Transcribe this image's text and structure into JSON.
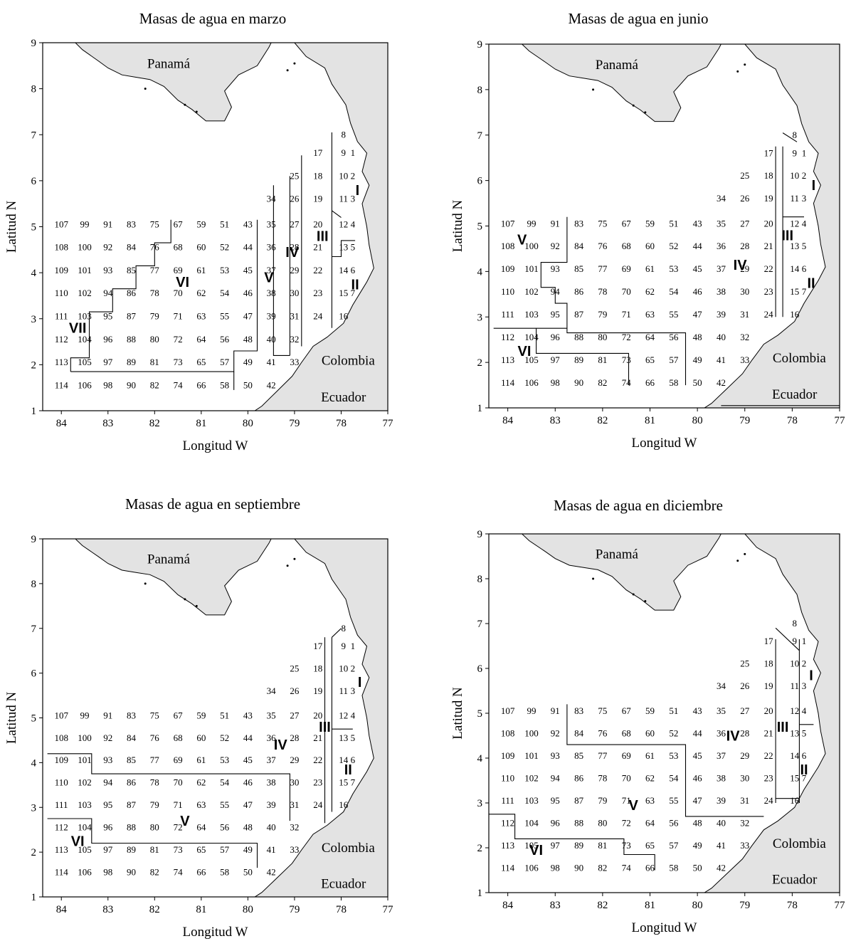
{
  "panels": [
    {
      "title": "Masas de agua en marzo",
      "id": "marzo",
      "labels": [
        [
          "VII",
          83.65,
          2.8
        ],
        [
          "VI",
          81.4,
          3.8
        ],
        [
          "V",
          79.55,
          3.9
        ],
        [
          "IV",
          79.05,
          4.45
        ],
        [
          "III",
          78.4,
          4.8
        ],
        [
          "II",
          77.7,
          3.75
        ],
        [
          "I",
          77.65,
          5.8
        ]
      ],
      "lines": [
        [
          [
            83.8,
            1.85
          ],
          [
            83.8,
            2.15
          ],
          [
            83.4,
            2.15
          ],
          [
            83.4,
            3.15
          ],
          [
            82.9,
            3.15
          ],
          [
            82.9,
            3.65
          ],
          [
            82.4,
            3.65
          ],
          [
            82.4,
            4.15
          ],
          [
            82.0,
            4.15
          ],
          [
            82.0,
            4.65
          ],
          [
            81.65,
            4.65
          ],
          [
            81.65,
            5.15
          ]
        ],
        [
          [
            83.8,
            1.85
          ],
          [
            80.3,
            1.85
          ],
          [
            80.3,
            2.3
          ],
          [
            79.8,
            2.3
          ],
          [
            79.8,
            5.15
          ]
        ],
        [
          [
            80.3,
            1.85
          ],
          [
            80.3,
            1.45
          ]
        ],
        [
          [
            79.45,
            5.9
          ],
          [
            79.45,
            2.2
          ],
          [
            79.1,
            2.2
          ]
        ],
        [
          [
            79.1,
            2.2
          ],
          [
            79.1,
            6.1
          ]
        ],
        [
          [
            78.85,
            2.4
          ],
          [
            78.85,
            6.55
          ]
        ],
        [
          [
            78.2,
            2.8
          ],
          [
            78.2,
            7.05
          ]
        ],
        [
          [
            78.2,
            4.35
          ],
          [
            78.0,
            4.35
          ],
          [
            78.0,
            4.7
          ],
          [
            77.7,
            4.7
          ]
        ],
        [
          [
            78.2,
            5.35
          ],
          [
            78.0,
            5.2
          ]
        ]
      ]
    },
    {
      "title": "Masas de agua en junio",
      "id": "junio",
      "labels": [
        [
          "V",
          83.7,
          4.7
        ],
        [
          "VI",
          83.65,
          2.25
        ],
        [
          "IV",
          79.1,
          4.15
        ],
        [
          "III",
          78.1,
          4.8
        ],
        [
          "II",
          77.6,
          3.75
        ],
        [
          "I",
          77.55,
          5.9
        ]
      ],
      "lines": [
        [
          [
            84.3,
            2.75
          ],
          [
            83.4,
            2.75
          ],
          [
            83.4,
            2.2
          ],
          [
            81.45,
            2.2
          ],
          [
            81.45,
            1.5
          ]
        ],
        [
          [
            83.4,
            2.75
          ],
          [
            82.75,
            2.75
          ],
          [
            82.75,
            3.3
          ],
          [
            83.0,
            3.3
          ],
          [
            83.0,
            3.65
          ],
          [
            83.3,
            3.65
          ],
          [
            83.3,
            4.2
          ],
          [
            82.75,
            4.2
          ],
          [
            82.75,
            5.2
          ]
        ],
        [
          [
            82.75,
            2.75
          ],
          [
            82.75,
            2.65
          ],
          [
            80.25,
            2.65
          ],
          [
            80.25,
            1.5
          ]
        ],
        [
          [
            78.35,
            3.0
          ],
          [
            78.35,
            6.75
          ]
        ],
        [
          [
            78.2,
            3.0
          ],
          [
            78.2,
            6.75
          ]
        ],
        [
          [
            78.2,
            5.2
          ],
          [
            77.75,
            5.2
          ]
        ],
        [
          [
            78.2,
            7.05
          ],
          [
            77.9,
            6.85
          ]
        ],
        [
          [
            79.5,
            1.05
          ],
          [
            77.0,
            1.05
          ]
        ]
      ]
    },
    {
      "title": "Masas de agua en septiembre",
      "id": "septiembre",
      "labels": [
        [
          "VI",
          83.65,
          2.25
        ],
        [
          "V",
          81.35,
          2.7
        ],
        [
          "IV",
          79.3,
          4.4
        ],
        [
          "III",
          78.35,
          4.8
        ],
        [
          "II",
          77.85,
          3.85
        ],
        [
          "I",
          77.6,
          5.8
        ]
      ],
      "lines": [
        [
          [
            84.3,
            4.2
          ],
          [
            83.35,
            4.2
          ],
          [
            83.35,
            3.75
          ],
          [
            79.1,
            3.75
          ],
          [
            79.1,
            2.7
          ]
        ],
        [
          [
            84.3,
            2.75
          ],
          [
            83.35,
            2.75
          ],
          [
            83.35,
            2.2
          ],
          [
            79.8,
            2.2
          ],
          [
            79.8,
            1.65
          ]
        ],
        [
          [
            78.35,
            2.65
          ],
          [
            78.35,
            6.8
          ]
        ],
        [
          [
            78.2,
            2.9
          ],
          [
            78.2,
            6.8
          ]
        ],
        [
          [
            78.2,
            4.75
          ],
          [
            77.75,
            4.75
          ]
        ],
        [
          [
            78.2,
            6.8
          ],
          [
            78.0,
            7.0
          ]
        ]
      ]
    },
    {
      "title": "Masas de agua en diciembre",
      "id": "diciembre",
      "labels": [
        [
          "VI",
          83.4,
          1.95
        ],
        [
          "V",
          81.35,
          2.95
        ],
        [
          "IV",
          79.25,
          4.5
        ],
        [
          "III",
          78.2,
          4.7
        ],
        [
          "II",
          77.75,
          3.75
        ],
        [
          "I",
          77.6,
          5.85
        ]
      ],
      "lines": [
        [
          [
            84.4,
            2.75
          ],
          [
            83.85,
            2.75
          ],
          [
            83.85,
            2.2
          ],
          [
            81.55,
            2.2
          ],
          [
            81.55,
            1.85
          ],
          [
            80.9,
            1.85
          ],
          [
            80.9,
            1.5
          ]
        ],
        [
          [
            82.75,
            5.2
          ],
          [
            82.75,
            4.3
          ],
          [
            80.25,
            4.3
          ],
          [
            80.25,
            2.7
          ],
          [
            78.6,
            2.7
          ]
        ],
        [
          [
            78.35,
            3.0
          ],
          [
            78.35,
            6.65
          ]
        ],
        [
          [
            78.35,
            3.1
          ],
          [
            77.85,
            3.1
          ]
        ],
        [
          [
            77.85,
            3.0
          ],
          [
            77.85,
            6.65
          ]
        ],
        [
          [
            77.85,
            4.75
          ],
          [
            77.55,
            4.75
          ]
        ],
        [
          [
            78.35,
            6.9
          ],
          [
            77.85,
            6.4
          ]
        ]
      ]
    }
  ],
  "axes": {
    "xlabel": "Longitud W",
    "ylabel": "Latitud N",
    "xticks": [
      84,
      83,
      82,
      81,
      80,
      79,
      78,
      77
    ],
    "yticks": [
      1,
      2,
      3,
      4,
      5,
      6,
      7,
      8,
      9
    ]
  },
  "places": {
    "panama": "Panamá",
    "colombia": "Colombia",
    "ecuador": "Ecuador"
  },
  "colors": {
    "land": "#e3e3e3",
    "line": "#000000"
  },
  "stations": [
    [
      1,
      77.75,
      6.6
    ],
    [
      2,
      77.75,
      6.1
    ],
    [
      3,
      77.75,
      5.6
    ],
    [
      4,
      77.75,
      5.05
    ],
    [
      5,
      77.75,
      4.55
    ],
    [
      6,
      77.75,
      4.05
    ],
    [
      7,
      77.75,
      3.55
    ],
    [
      8,
      77.95,
      7.0
    ],
    [
      9,
      77.95,
      6.6
    ],
    [
      10,
      77.95,
      6.1
    ],
    [
      11,
      77.95,
      5.6
    ],
    [
      12,
      77.95,
      5.05
    ],
    [
      13,
      77.95,
      4.55
    ],
    [
      14,
      77.95,
      4.05
    ],
    [
      15,
      77.95,
      3.55
    ],
    [
      16,
      77.95,
      3.05
    ],
    [
      17,
      78.5,
      6.6
    ],
    [
      18,
      78.5,
      6.1
    ],
    [
      19,
      78.5,
      5.6
    ],
    [
      20,
      78.5,
      5.05
    ],
    [
      21,
      78.5,
      4.55
    ],
    [
      22,
      78.5,
      4.05
    ],
    [
      23,
      78.5,
      3.55
    ],
    [
      24,
      78.5,
      3.05
    ],
    [
      25,
      79.0,
      6.1
    ],
    [
      26,
      79.0,
      5.6
    ],
    [
      27,
      79.0,
      5.05
    ],
    [
      28,
      79.0,
      4.55
    ],
    [
      29,
      79.0,
      4.05
    ],
    [
      30,
      79.0,
      3.55
    ],
    [
      31,
      79.0,
      3.05
    ],
    [
      32,
      79.0,
      2.55
    ],
    [
      33,
      79.0,
      2.05
    ],
    [
      34,
      79.5,
      5.6
    ],
    [
      35,
      79.5,
      5.05
    ],
    [
      36,
      79.5,
      4.55
    ],
    [
      37,
      79.5,
      4.05
    ],
    [
      38,
      79.5,
      3.55
    ],
    [
      39,
      79.5,
      3.05
    ],
    [
      40,
      79.5,
      2.55
    ],
    [
      41,
      79.5,
      2.05
    ],
    [
      42,
      79.5,
      1.55
    ],
    [
      43,
      80.0,
      5.05
    ],
    [
      44,
      80.0,
      4.55
    ],
    [
      45,
      80.0,
      4.05
    ],
    [
      46,
      80.0,
      3.55
    ],
    [
      47,
      80.0,
      3.05
    ],
    [
      48,
      80.0,
      2.55
    ],
    [
      49,
      80.0,
      2.05
    ],
    [
      50,
      80.0,
      1.55
    ],
    [
      51,
      80.5,
      5.05
    ],
    [
      52,
      80.5,
      4.55
    ],
    [
      53,
      80.5,
      4.05
    ],
    [
      54,
      80.5,
      3.55
    ],
    [
      55,
      80.5,
      3.05
    ],
    [
      56,
      80.5,
      2.55
    ],
    [
      57,
      80.5,
      2.05
    ],
    [
      58,
      80.5,
      1.55
    ],
    [
      59,
      81.0,
      5.05
    ],
    [
      60,
      81.0,
      4.55
    ],
    [
      61,
      81.0,
      4.05
    ],
    [
      62,
      81.0,
      3.55
    ],
    [
      63,
      81.0,
      3.05
    ],
    [
      64,
      81.0,
      2.55
    ],
    [
      65,
      81.0,
      2.05
    ],
    [
      66,
      81.0,
      1.55
    ],
    [
      67,
      81.5,
      5.05
    ],
    [
      68,
      81.5,
      4.55
    ],
    [
      69,
      81.5,
      4.05
    ],
    [
      70,
      81.5,
      3.55
    ],
    [
      71,
      81.5,
      3.05
    ],
    [
      72,
      81.5,
      2.55
    ],
    [
      73,
      81.5,
      2.05
    ],
    [
      74,
      81.5,
      1.55
    ],
    [
      75,
      82.0,
      5.05
    ],
    [
      76,
      82.0,
      4.55
    ],
    [
      77,
      82.0,
      4.05
    ],
    [
      78,
      82.0,
      3.55
    ],
    [
      79,
      82.0,
      3.05
    ],
    [
      80,
      82.0,
      2.55
    ],
    [
      81,
      82.0,
      2.05
    ],
    [
      82,
      82.0,
      1.55
    ],
    [
      83,
      82.5,
      5.05
    ],
    [
      84,
      82.5,
      4.55
    ],
    [
      85,
      82.5,
      4.05
    ],
    [
      86,
      82.5,
      3.55
    ],
    [
      87,
      82.5,
      3.05
    ],
    [
      88,
      82.5,
      2.55
    ],
    [
      89,
      82.5,
      2.05
    ],
    [
      90,
      82.5,
      1.55
    ],
    [
      91,
      83.0,
      5.05
    ],
    [
      92,
      83.0,
      4.55
    ],
    [
      93,
      83.0,
      4.05
    ],
    [
      94,
      83.0,
      3.55
    ],
    [
      95,
      83.0,
      3.05
    ],
    [
      96,
      83.0,
      2.55
    ],
    [
      97,
      83.0,
      2.05
    ],
    [
      98,
      83.0,
      1.55
    ],
    [
      99,
      83.5,
      5.05
    ],
    [
      100,
      83.5,
      4.55
    ],
    [
      101,
      83.5,
      4.05
    ],
    [
      102,
      83.5,
      3.55
    ],
    [
      103,
      83.5,
      3.05
    ],
    [
      104,
      83.5,
      2.55
    ],
    [
      105,
      83.5,
      2.05
    ],
    [
      106,
      83.5,
      1.55
    ],
    [
      107,
      84.0,
      5.05
    ],
    [
      108,
      84.0,
      4.55
    ],
    [
      109,
      84.0,
      4.05
    ],
    [
      110,
      84.0,
      3.55
    ],
    [
      111,
      84.0,
      3.05
    ],
    [
      112,
      84.0,
      2.55
    ],
    [
      113,
      84.0,
      2.05
    ],
    [
      114,
      84.0,
      1.55
    ]
  ]
}
